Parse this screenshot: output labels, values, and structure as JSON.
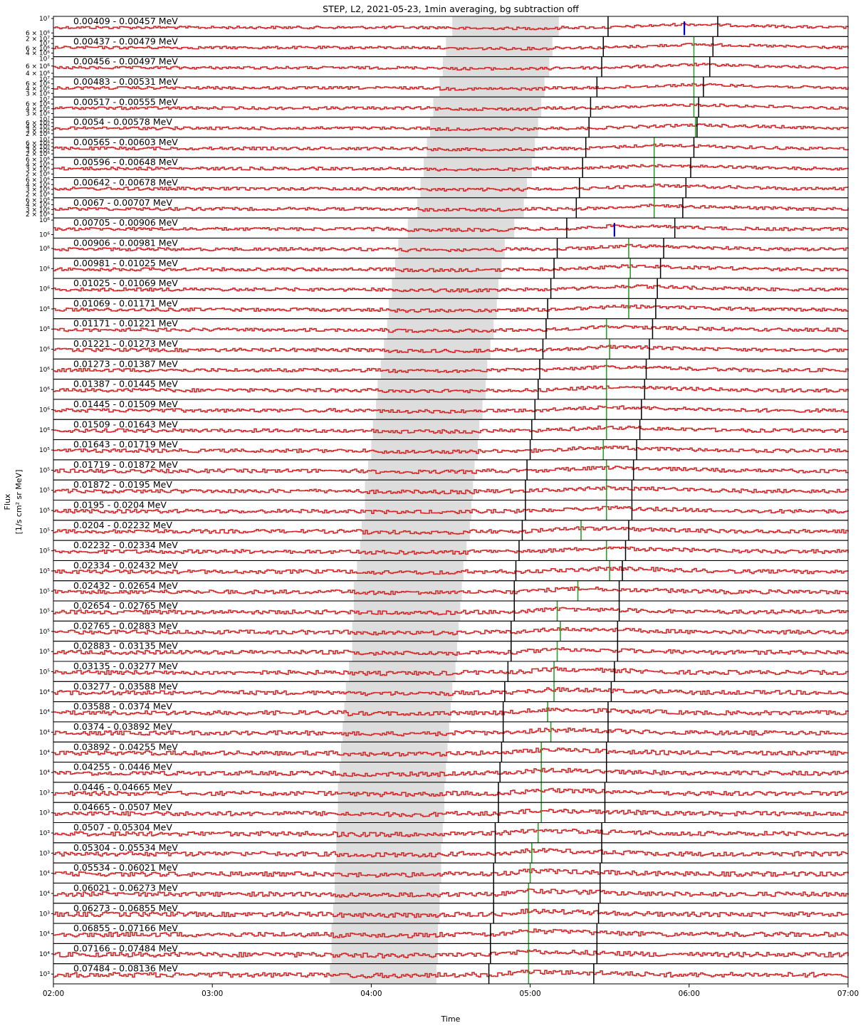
{
  "figure": {
    "title": "STEP, L2, 2021-05-23, 1min averaging, bg subtraction off",
    "xlabel": "Time",
    "ylabel_line1": "Flux",
    "ylabel_line2": "[1/s cm² sr MeV]"
  },
  "chart_data": {
    "type": "line",
    "x_range": [
      "02:00",
      "07:00"
    ],
    "x_ticks": [
      "02:00",
      "03:00",
      "04:00",
      "05:00",
      "06:00",
      "07:00"
    ],
    "shaded_interval_color": "#dddddd",
    "line_color": "#d62728",
    "marker_colors": {
      "black": "#000000",
      "green": "#2ca02c",
      "blue": "#0000cc"
    },
    "panels": [
      {
        "label": "0.00409 - 0.00457 MeV",
        "ticks": [
          "10⁷",
          "6 × 10⁶"
        ],
        "shade": [
          4.51,
          5.18
        ],
        "black": [
          5.49,
          6.18
        ],
        "green": null,
        "blue": 5.97
      },
      {
        "label": "0.00437 - 0.00479 MeV",
        "ticks": [
          "2 × 10⁷",
          "10⁷",
          "6 × 10⁶",
          "4 × 10⁶"
        ],
        "shade": [
          4.47,
          5.14
        ],
        "black": [
          5.46,
          6.15
        ],
        "green": 6.03,
        "blue": null
      },
      {
        "label": "0.00456 - 0.00497 MeV",
        "ticks": [
          "10⁷",
          "6 × 10⁶",
          "4 × 10⁶"
        ],
        "shade": [
          4.45,
          5.12
        ],
        "black": [
          5.45,
          6.13
        ],
        "green": 6.03,
        "blue": null
      },
      {
        "label": "0.00483 - 0.00531 MeV",
        "ticks": [
          "10⁷",
          "6 × 10⁶",
          "4 × 10⁶",
          "3 × 10⁶"
        ],
        "shade": [
          4.43,
          5.09
        ],
        "black": [
          5.42,
          6.09
        ],
        "green": 6.03,
        "blue": null
      },
      {
        "label": "0.00517 - 0.00555 MeV",
        "ticks": [
          "10⁷",
          "6 × 10⁶",
          "4 × 10⁶",
          "3 × 10⁶"
        ],
        "shade": [
          4.39,
          5.07
        ],
        "black": [
          5.38,
          6.06
        ],
        "green": 6.03,
        "blue": null
      },
      {
        "label": "0.0054 - 0.00578 MeV",
        "ticks": [
          "10⁷",
          "6 × 10⁶",
          "4 × 10⁶",
          "3 × 10⁶",
          "2 × 10⁶"
        ],
        "shade": [
          4.37,
          5.05
        ],
        "black": [
          5.37,
          6.05
        ],
        "green": 6.04,
        "blue": null
      },
      {
        "label": "0.00565 - 0.00603 MeV",
        "ticks": [
          "10⁷",
          "6 × 10⁶",
          "4 × 10⁶",
          "3 × 10⁶",
          "2 × 10⁶"
        ],
        "shade": [
          4.35,
          5.03
        ],
        "black": [
          5.35,
          6.03
        ],
        "green": 5.78,
        "blue": null
      },
      {
        "label": "0.00596 - 0.00648 MeV",
        "ticks": [
          "6 × 10⁶",
          "4 × 10⁶",
          "3 × 10⁶",
          "2 × 10⁶"
        ],
        "shade": [
          4.33,
          5.01
        ],
        "black": [
          5.33,
          6.01
        ],
        "green": 5.78,
        "blue": null
      },
      {
        "label": "0.00642 - 0.00678 MeV",
        "ticks": [
          "6 × 10⁶",
          "4 × 10⁶",
          "3 × 10⁶",
          "2 × 10⁶"
        ],
        "shade": [
          4.31,
          4.98
        ],
        "black": [
          5.31,
          5.98
        ],
        "green": 5.78,
        "blue": null
      },
      {
        "label": "0.0067 - 0.00707 MeV",
        "ticks": [
          "6 × 10⁶",
          "4 × 10⁶",
          "3 × 10⁶",
          "2 × 10⁶"
        ],
        "shade": [
          4.29,
          4.96
        ],
        "black": [
          5.29,
          5.96
        ],
        "green": 5.78,
        "blue": null
      },
      {
        "label": "0.00705 - 0.00906 MeV",
        "ticks": [
          "10⁶",
          "10⁶"
        ],
        "shade": [
          4.23,
          4.9
        ],
        "black": [
          5.23,
          5.91
        ],
        "green": null,
        "blue": 5.53
      },
      {
        "label": "0.00906 - 0.00981 MeV",
        "ticks": [
          "10⁶"
        ],
        "shade": [
          4.17,
          4.84
        ],
        "black": [
          5.17,
          5.84
        ],
        "green": 5.62,
        "blue": null
      },
      {
        "label": "0.00981 - 0.01025 MeV",
        "ticks": [
          "10⁶"
        ],
        "shade": [
          4.15,
          4.82
        ],
        "black": [
          5.15,
          5.82
        ],
        "green": 5.63,
        "blue": null
      },
      {
        "label": "0.01025 - 0.01069 MeV",
        "ticks": [
          "10⁶"
        ],
        "shade": [
          4.13,
          4.8
        ],
        "black": [
          5.13,
          5.8
        ],
        "green": 5.62,
        "blue": null
      },
      {
        "label": "0.01069 - 0.01171 MeV",
        "ticks": [
          "10⁶"
        ],
        "shade": [
          4.11,
          4.79
        ],
        "black": [
          5.11,
          5.79
        ],
        "green": 5.62,
        "blue": null
      },
      {
        "label": "0.01171 - 0.01221 MeV",
        "ticks": [
          "10⁶"
        ],
        "shade": [
          4.1,
          4.77
        ],
        "black": [
          5.1,
          5.77
        ],
        "green": 5.48,
        "blue": null
      },
      {
        "label": "0.01221 - 0.01273 MeV",
        "ticks": [
          "10⁶"
        ],
        "shade": [
          4.08,
          4.75
        ],
        "black": [
          5.08,
          5.75
        ],
        "green": 5.5,
        "blue": null
      },
      {
        "label": "0.01273 - 0.01387 MeV",
        "ticks": [
          "10⁶"
        ],
        "shade": [
          4.06,
          4.73
        ],
        "black": [
          5.06,
          5.73
        ],
        "green": 5.48,
        "blue": null
      },
      {
        "label": "0.01387 - 0.01445 MeV",
        "ticks": [
          "10⁶"
        ],
        "shade": [
          4.04,
          4.72
        ],
        "black": [
          5.05,
          5.72
        ],
        "green": 5.48,
        "blue": null
      },
      {
        "label": "0.01445 - 0.01509 MeV",
        "ticks": [
          "10⁶"
        ],
        "shade": [
          4.03,
          4.7
        ],
        "black": [
          5.03,
          5.7
        ],
        "green": 5.48,
        "blue": null
      },
      {
        "label": "0.01509 - 0.01643 MeV",
        "ticks": [
          "10⁶"
        ],
        "shade": [
          4.01,
          4.68
        ],
        "black": [
          5.01,
          5.69
        ],
        "green": 5.48,
        "blue": null
      },
      {
        "label": "0.01643 - 0.01719 MeV",
        "ticks": [
          "10⁵"
        ],
        "shade": [
          4.0,
          4.67
        ],
        "black": [
          5.0,
          5.67
        ],
        "green": 5.46,
        "blue": null
      },
      {
        "label": "0.01719 - 0.01872 MeV",
        "ticks": [
          "10⁵"
        ],
        "shade": [
          3.98,
          4.65
        ],
        "black": [
          4.98,
          5.65
        ],
        "green": 5.48,
        "blue": null
      },
      {
        "label": "0.01872 - 0.0195 MeV",
        "ticks": [
          "10⁵"
        ],
        "shade": [
          3.96,
          4.64
        ],
        "black": [
          4.97,
          5.64
        ],
        "green": 5.48,
        "blue": null
      },
      {
        "label": "0.0195 - 0.0204 MeV",
        "ticks": [
          "10⁵"
        ],
        "shade": [
          3.96,
          4.63
        ],
        "black": [
          4.97,
          5.64
        ],
        "green": 5.48,
        "blue": null
      },
      {
        "label": "0.0204 - 0.02232 MeV",
        "ticks": [
          "10⁵"
        ],
        "shade": [
          3.94,
          4.62
        ],
        "black": [
          4.95,
          5.62
        ],
        "green": 5.32,
        "blue": null
      },
      {
        "label": "0.02232 - 0.02334 MeV",
        "ticks": [
          "10⁵"
        ],
        "shade": [
          3.93,
          4.6
        ],
        "black": [
          4.93,
          5.6
        ],
        "green": 5.48,
        "blue": null
      },
      {
        "label": "0.02334 - 0.02432 MeV",
        "ticks": [
          "10⁵"
        ],
        "shade": [
          3.91,
          4.58
        ],
        "black": [
          4.91,
          5.58
        ],
        "green": 5.5,
        "blue": null
      },
      {
        "label": "0.02432 - 0.02654 MeV",
        "ticks": [
          "10⁵"
        ],
        "shade": [
          3.89,
          4.57
        ],
        "black": [
          4.9,
          5.56
        ],
        "green": 5.3,
        "blue": null
      },
      {
        "label": "0.02654 - 0.02765 MeV",
        "ticks": [
          "10⁵"
        ],
        "shade": [
          3.89,
          4.56
        ],
        "black": [
          4.9,
          5.56
        ],
        "green": 5.17,
        "blue": null
      },
      {
        "label": "0.02765 - 0.02883 MeV",
        "ticks": [
          "10⁵"
        ],
        "shade": [
          3.88,
          4.55
        ],
        "black": [
          4.88,
          5.55
        ],
        "green": 5.19,
        "blue": null
      },
      {
        "label": "0.02883 - 0.03135 MeV",
        "ticks": [
          "10⁵"
        ],
        "shade": [
          3.88,
          4.54
        ],
        "black": [
          4.88,
          5.55
        ],
        "green": 5.17,
        "blue": null
      },
      {
        "label": "0.03135 - 0.03277 MeV",
        "ticks": [
          "10⁵"
        ],
        "shade": [
          3.86,
          4.53
        ],
        "black": [
          4.86,
          5.53
        ],
        "green": 5.15,
        "blue": null
      },
      {
        "label": "0.03277 - 0.03588 MeV",
        "ticks": [
          "10⁴"
        ],
        "shade": [
          3.84,
          4.51
        ],
        "black": [
          4.84,
          5.51
        ],
        "green": 5.15,
        "blue": null
      },
      {
        "label": "0.03588 - 0.0374 MeV",
        "ticks": [
          "10⁴"
        ],
        "shade": [
          3.83,
          4.5
        ],
        "black": [
          4.83,
          5.49
        ],
        "green": 5.11,
        "blue": null
      },
      {
        "label": "0.0374 - 0.03892 MeV",
        "ticks": [
          "10⁴"
        ],
        "shade": [
          3.82,
          4.49
        ],
        "black": [
          4.83,
          5.49
        ],
        "green": 5.13,
        "blue": null
      },
      {
        "label": "0.03892 - 0.04255 MeV",
        "ticks": [
          "10⁴"
        ],
        "shade": [
          3.81,
          4.48
        ],
        "black": [
          4.82,
          5.48
        ],
        "green": 5.07,
        "blue": null
      },
      {
        "label": "0.04255 - 0.0446 MeV",
        "ticks": [
          "10⁴"
        ],
        "shade": [
          3.8,
          4.47
        ],
        "black": [
          4.81,
          5.48
        ],
        "green": 5.07,
        "blue": null
      },
      {
        "label": "0.0446 - 0.04665 MeV",
        "ticks": [
          "10³"
        ],
        "shade": [
          3.79,
          4.46
        ],
        "black": [
          4.8,
          5.47
        ],
        "green": 5.07,
        "blue": null
      },
      {
        "label": "0.04665 - 0.0507 MeV",
        "ticks": [
          "10³"
        ],
        "shade": [
          3.79,
          4.46
        ],
        "black": [
          4.8,
          5.47
        ],
        "green": 5.07,
        "blue": null
      },
      {
        "label": "0.0507 - 0.05304 MeV",
        "ticks": [
          "10³"
        ],
        "shade": [
          3.78,
          4.45
        ],
        "black": [
          4.78,
          5.45
        ],
        "green": 5.05,
        "blue": null
      },
      {
        "label": "0.05304 - 0.05534 MeV",
        "ticks": [
          "10³"
        ],
        "shade": [
          3.78,
          4.44
        ],
        "black": [
          4.78,
          5.45
        ],
        "green": 5.01,
        "blue": null
      },
      {
        "label": "0.05534 - 0.06021 MeV",
        "ticks": [
          "10⁴"
        ],
        "shade": [
          3.77,
          4.44
        ],
        "black": [
          4.77,
          5.44
        ],
        "green": 5.0,
        "blue": null
      },
      {
        "label": "0.06021 - 0.06273 MeV",
        "ticks": [
          "10⁴"
        ],
        "shade": [
          3.77,
          4.43
        ],
        "black": [
          4.77,
          5.44
        ],
        "green": 4.99,
        "blue": null
      },
      {
        "label": "0.06273 - 0.06855 MeV",
        "ticks": [
          "10³"
        ],
        "shade": [
          3.76,
          4.43
        ],
        "black": [
          4.77,
          5.43
        ],
        "green": 4.99,
        "blue": null
      },
      {
        "label": "0.06855 - 0.07166 MeV",
        "ticks": [
          "10⁴"
        ],
        "shade": [
          3.75,
          4.42
        ],
        "black": [
          4.75,
          5.42
        ],
        "green": 4.99,
        "blue": null
      },
      {
        "label": "0.07166 - 0.07484 MeV",
        "ticks": [
          "10⁴"
        ],
        "shade": [
          3.75,
          4.42
        ],
        "black": [
          4.75,
          5.42
        ],
        "green": 4.99,
        "blue": null
      },
      {
        "label": "0.07484 - 0.08136 MeV",
        "ticks": [
          "10³"
        ],
        "shade": [
          3.74,
          4.41
        ],
        "black": [
          4.74,
          5.4
        ],
        "green": 4.99,
        "blue": null
      }
    ]
  }
}
